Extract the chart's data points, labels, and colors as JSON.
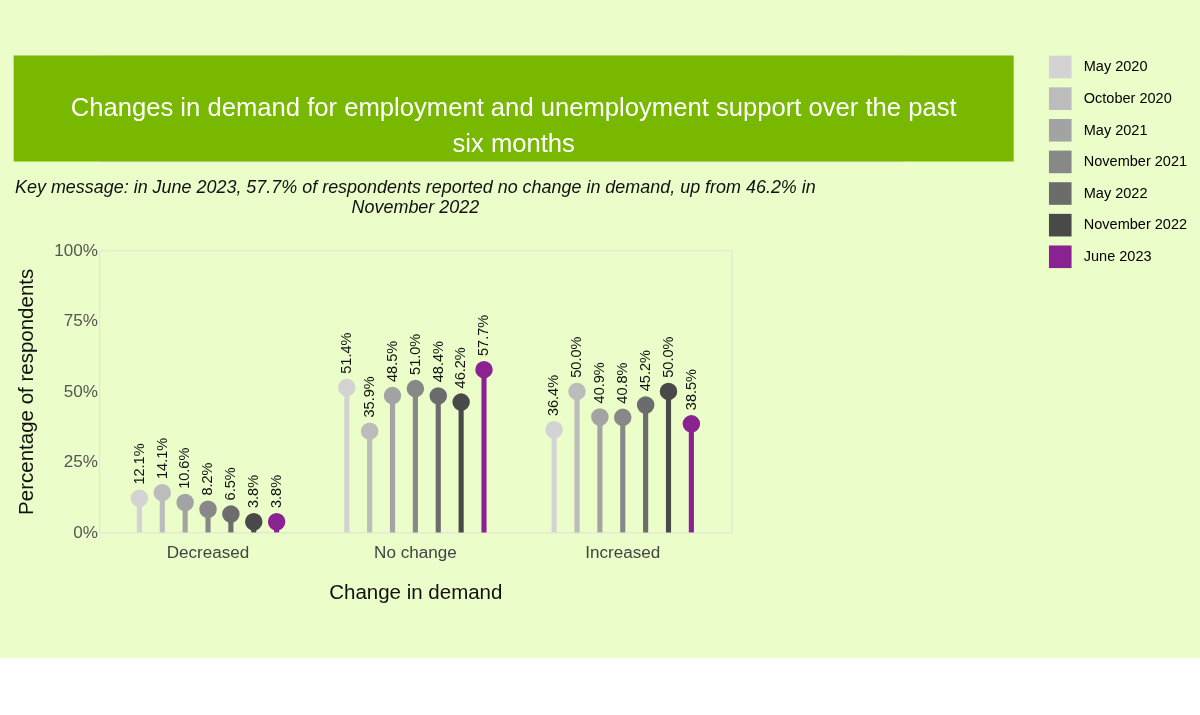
{
  "chart_data": {
    "type": "lollipop",
    "title": "Changes in demand for employment and unemployment support over the past six months",
    "subtitle": "Key message: in June 2023, 57.7% of respondents reported no change in demand, up from 46.2% in November 2022",
    "xlabel": "Change in demand",
    "ylabel": "Percentage of respondents",
    "categories": [
      "Decreased",
      "No change",
      "Increased"
    ],
    "ylim": [
      0,
      100
    ],
    "yticks": [
      {
        "value": 0,
        "label": "0%"
      },
      {
        "value": 25,
        "label": "25%"
      },
      {
        "value": 50,
        "label": "50%"
      },
      {
        "value": 75,
        "label": "75%"
      },
      {
        "value": 100,
        "label": "100%"
      }
    ],
    "grid": false,
    "legend": "right",
    "marker": "circle",
    "series": [
      {
        "name": "May 2020",
        "color": "#d3d3d3",
        "values": [
          12.1,
          51.4,
          36.4
        ],
        "value_labels": [
          "12.1%",
          "51.4%",
          "36.4%"
        ]
      },
      {
        "name": "October 2020",
        "color": "#bcbcbc",
        "values": [
          14.1,
          35.9,
          50.0
        ],
        "value_labels": [
          "14.1%",
          "35.9%",
          "50.0%"
        ]
      },
      {
        "name": "May 2021",
        "color": "#a3a3a3",
        "values": [
          10.6,
          48.5,
          40.9
        ],
        "value_labels": [
          "10.6%",
          "48.5%",
          "40.9%"
        ]
      },
      {
        "name": "November 2021",
        "color": "#888888",
        "values": [
          8.2,
          51.0,
          40.8
        ],
        "value_labels": [
          "8.2%",
          "51.0%",
          "40.8%"
        ]
      },
      {
        "name": "May 2022",
        "color": "#6c6c6c",
        "values": [
          6.5,
          48.4,
          45.2
        ],
        "value_labels": [
          "6.5%",
          "48.4%",
          "45.2%"
        ]
      },
      {
        "name": "November 2022",
        "color": "#494949",
        "values": [
          3.8,
          46.2,
          50.0
        ],
        "value_labels": [
          "3.8%",
          "46.2%",
          "50.0%"
        ]
      },
      {
        "name": "June 2023",
        "color": "#8b2292",
        "values": [
          3.8,
          57.7,
          38.5
        ],
        "value_labels": [
          "3.8%",
          "57.7%",
          "38.5%"
        ]
      }
    ]
  }
}
